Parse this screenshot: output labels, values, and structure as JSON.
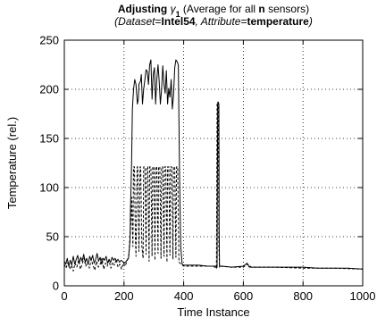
{
  "chart_data": {
    "type": "line",
    "title": {
      "line1": [
        {
          "text": "Adjusting ",
          "weight": "bold",
          "style": "normal"
        },
        {
          "text": "γ",
          "weight": "normal",
          "style": "italic"
        },
        {
          "text": "1",
          "weight": "bold",
          "style": "normal",
          "sub": true
        },
        {
          "text": "  (Average for all ",
          "weight": "normal",
          "style": "normal"
        },
        {
          "text": "n",
          "weight": "bold",
          "style": "normal"
        },
        {
          "text": " sensors)",
          "weight": "normal",
          "style": "normal"
        }
      ],
      "line2": [
        {
          "text": "(Dataset",
          "weight": "normal",
          "style": "italic"
        },
        {
          "text": "=",
          "weight": "normal",
          "style": "normal"
        },
        {
          "text": "Intel54",
          "weight": "bold",
          "style": "normal"
        },
        {
          "text": ", Attribute",
          "weight": "normal",
          "style": "italic"
        },
        {
          "text": "=",
          "weight": "normal",
          "style": "normal"
        },
        {
          "text": "temperature",
          "weight": "bold",
          "style": "normal"
        },
        {
          "text": ")",
          "weight": "normal",
          "style": "italic"
        }
      ]
    },
    "xlabel": "Time Instance",
    "ylabel": "Temperature (rel.)",
    "xlim": [
      0,
      1000
    ],
    "ylim": [
      0,
      250
    ],
    "xticks": [
      0,
      200,
      400,
      600,
      800,
      1000
    ],
    "yticks": [
      0,
      50,
      100,
      150,
      200,
      250
    ],
    "grid": true,
    "legend": "none",
    "series": [
      {
        "style": "solid",
        "color": "#000000",
        "x": [
          0,
          5,
          10,
          15,
          20,
          25,
          30,
          35,
          40,
          45,
          50,
          55,
          60,
          65,
          70,
          75,
          80,
          85,
          90,
          95,
          100,
          105,
          110,
          115,
          120,
          125,
          130,
          135,
          140,
          145,
          150,
          155,
          160,
          165,
          170,
          175,
          180,
          185,
          190,
          195,
          200,
          205,
          210,
          215,
          220,
          222,
          225,
          228,
          232,
          236,
          240,
          245,
          248,
          250,
          255,
          258,
          262,
          266,
          270,
          274,
          278,
          282,
          286,
          290,
          294,
          298,
          302,
          306,
          310,
          314,
          318,
          322,
          326,
          330,
          334,
          338,
          342,
          346,
          350,
          354,
          358,
          362,
          366,
          370,
          374,
          378,
          382,
          386,
          390,
          395,
          400,
          420,
          450,
          480,
          500,
          508,
          510,
          512,
          514,
          516,
          518,
          519,
          520,
          521,
          530,
          560,
          600,
          612,
          615,
          618,
          620,
          623,
          626,
          650,
          700,
          750,
          800,
          850,
          900,
          950,
          1000
        ],
        "y": [
          25,
          22,
          28,
          20,
          26,
          21,
          30,
          22,
          27,
          31,
          23,
          29,
          25,
          32,
          24,
          28,
          22,
          30,
          26,
          31,
          23,
          27,
          33,
          25,
          29,
          22,
          28,
          26,
          30,
          23,
          27,
          24,
          29,
          26,
          28,
          25,
          27,
          24,
          26,
          25,
          23,
          24,
          26,
          28,
          45,
          80,
          120,
          180,
          200,
          210,
          205,
          185,
          190,
          205,
          208,
          215,
          185,
          200,
          210,
          220,
          218,
          205,
          225,
          230,
          190,
          215,
          222,
          185,
          210,
          225,
          208,
          185,
          200,
          224,
          205,
          196,
          219,
          185,
          201,
          192,
          210,
          180,
          193,
          222,
          230,
          228,
          225,
          120,
          40,
          22,
          21,
          21,
          21,
          20,
          20,
          20,
          18,
          19,
          185,
          187,
          185,
          60,
          19,
          20,
          20,
          19,
          20,
          23,
          22,
          20,
          19,
          20,
          19,
          19,
          19,
          19,
          19,
          18,
          18,
          18,
          17
        ]
      },
      {
        "style": "dashed",
        "color": "#000000",
        "x": [
          0,
          6,
          12,
          18,
          24,
          30,
          36,
          42,
          48,
          54,
          60,
          66,
          72,
          78,
          84,
          90,
          96,
          102,
          108,
          114,
          120,
          126,
          132,
          138,
          144,
          150,
          156,
          162,
          168,
          174,
          180,
          186,
          192,
          198,
          204,
          210,
          216,
          220,
          224,
          226,
          228,
          230,
          232,
          235,
          238,
          240,
          244,
          246,
          250,
          254,
          256,
          260,
          264,
          266,
          270,
          274,
          276,
          280,
          284,
          286,
          290,
          294,
          296,
          300,
          304,
          306,
          310,
          314,
          316,
          320,
          324,
          326,
          330,
          334,
          336,
          340,
          344,
          346,
          350,
          354,
          356,
          360,
          364,
          366,
          370,
          374,
          376,
          380,
          384,
          388,
          392,
          396,
          400,
          420,
          450,
          480,
          500,
          508,
          510,
          512,
          514,
          516,
          518,
          520,
          560,
          600,
          614,
          618,
          622,
          650,
          700,
          800,
          900,
          1000
        ],
        "y": [
          22,
          18,
          24,
          17,
          21,
          15,
          23,
          19,
          26,
          17,
          22,
          28,
          20,
          24,
          18,
          27,
          21,
          16,
          25,
          19,
          22,
          28,
          17,
          23,
          20,
          26,
          18,
          24,
          21,
          27,
          19,
          22,
          17,
          23,
          20,
          25,
          30,
          50,
          70,
          90,
          60,
          40,
          121,
          121,
          50,
          30,
          121,
          121,
          35,
          121,
          121,
          40,
          28,
          121,
          121,
          32,
          121,
          121,
          25,
          121,
          121,
          30,
          121,
          121,
          26,
          121,
          121,
          33,
          121,
          121,
          28,
          121,
          121,
          30,
          121,
          121,
          24,
          121,
          121,
          31,
          121,
          121,
          27,
          121,
          121,
          29,
          121,
          121,
          24,
          23,
          22,
          21,
          20,
          20,
          20,
          20,
          20,
          18,
          19,
          185,
          187,
          185,
          40,
          20,
          19,
          19,
          22,
          21,
          19,
          19,
          19,
          18,
          18,
          17
        ]
      }
    ]
  }
}
